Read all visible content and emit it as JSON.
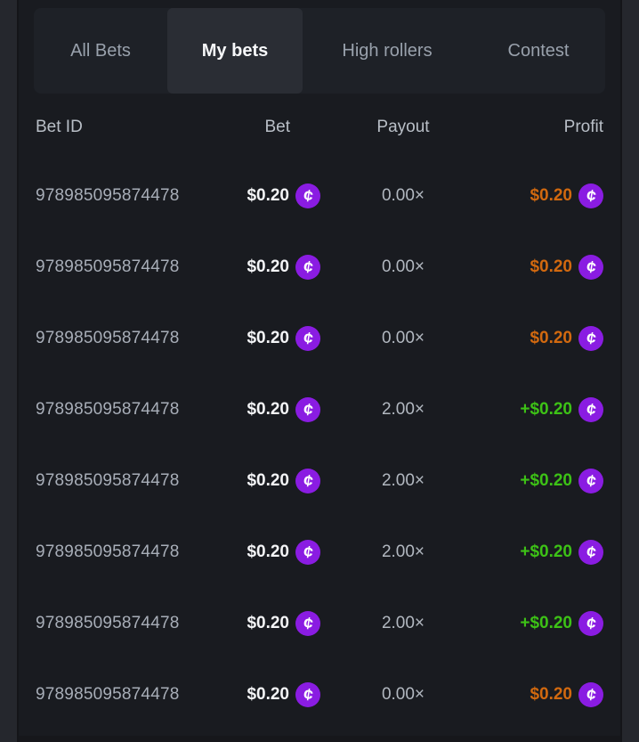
{
  "colors": {
    "page_bg": "#25272d",
    "panel_bg": "#191b20",
    "panel_border": "#141519",
    "panel_bottom": "#16171b",
    "tabbar_bg": "#1e2127",
    "active_tab_bg": "#2a2d34",
    "tab_text": "#99a1ac",
    "active_tab_text": "#f7f8fa",
    "header_text": "#b9bfc7",
    "id_text": "#a8aeb8",
    "payout_text": "#b2b8c0",
    "bet_text": "#f4f5f7",
    "profit_negative": "#d2690f",
    "profit_positive": "#3dc216",
    "coin_bg": "#8a1ce2",
    "coin_glyph_color": "#ffffff"
  },
  "tabs": {
    "items": [
      {
        "label": "All Bets",
        "active": false
      },
      {
        "label": "My bets",
        "active": true
      },
      {
        "label": "High rollers",
        "active": false
      },
      {
        "label": "Contest",
        "active": false
      }
    ]
  },
  "icons": {
    "coin": "cent-coin-icon",
    "coin_glyph": "¢"
  },
  "table": {
    "columns": [
      "Bet ID",
      "Bet",
      "Payout",
      "Profit"
    ],
    "rows": [
      {
        "bet_id": "978985095874478",
        "bet": "$0.20",
        "payout": "0.00×",
        "profit": "$0.20",
        "profit_positive": false
      },
      {
        "bet_id": "978985095874478",
        "bet": "$0.20",
        "payout": "0.00×",
        "profit": "$0.20",
        "profit_positive": false
      },
      {
        "bet_id": "978985095874478",
        "bet": "$0.20",
        "payout": "0.00×",
        "profit": "$0.20",
        "profit_positive": false
      },
      {
        "bet_id": "978985095874478",
        "bet": "$0.20",
        "payout": "2.00×",
        "profit": "+$0.20",
        "profit_positive": true
      },
      {
        "bet_id": "978985095874478",
        "bet": "$0.20",
        "payout": "2.00×",
        "profit": "+$0.20",
        "profit_positive": true
      },
      {
        "bet_id": "978985095874478",
        "bet": "$0.20",
        "payout": "2.00×",
        "profit": "+$0.20",
        "profit_positive": true
      },
      {
        "bet_id": "978985095874478",
        "bet": "$0.20",
        "payout": "2.00×",
        "profit": "+$0.20",
        "profit_positive": true
      },
      {
        "bet_id": "978985095874478",
        "bet": "$0.20",
        "payout": "0.00×",
        "profit": "$0.20",
        "profit_positive": false
      }
    ]
  }
}
